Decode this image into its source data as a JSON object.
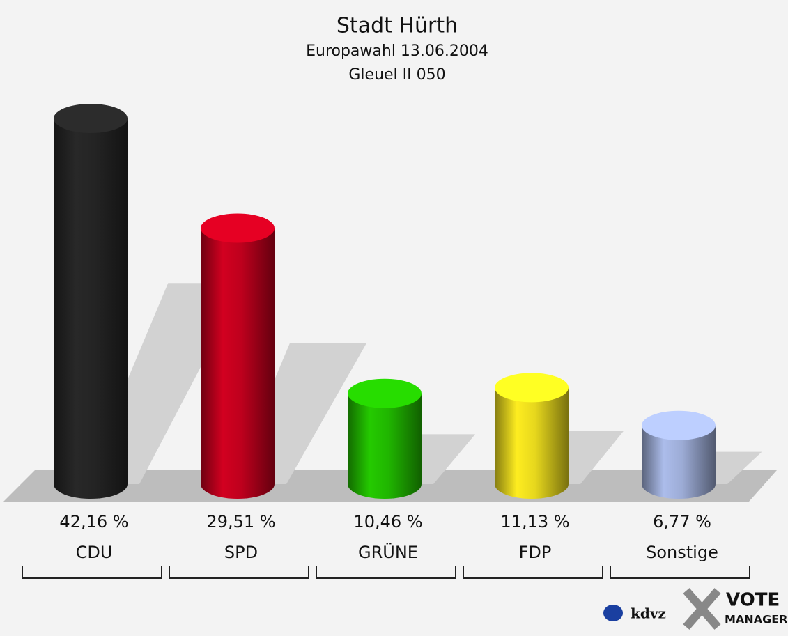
{
  "chart_data": {
    "type": "cylinder",
    "title": "Stadt Hürth",
    "subtitle": "Europawahl 13.06.2004",
    "subtitle2": "Gleuel II 050",
    "categories": [
      "CDU",
      "SPD",
      "GRÜNE",
      "FDP",
      "Sonstige"
    ],
    "values": [
      42.16,
      29.51,
      10.46,
      11.13,
      6.77
    ],
    "value_labels": [
      "42,16 %",
      "29,51 %",
      "10,46 %",
      "11,13 %",
      "6,77 %"
    ],
    "colors": [
      "#262626",
      "#c8001e",
      "#22c000",
      "#f2e21e",
      "#a4b4e0"
    ],
    "logos": [
      "kdvz",
      "VOTE",
      "MANAGER"
    ]
  }
}
